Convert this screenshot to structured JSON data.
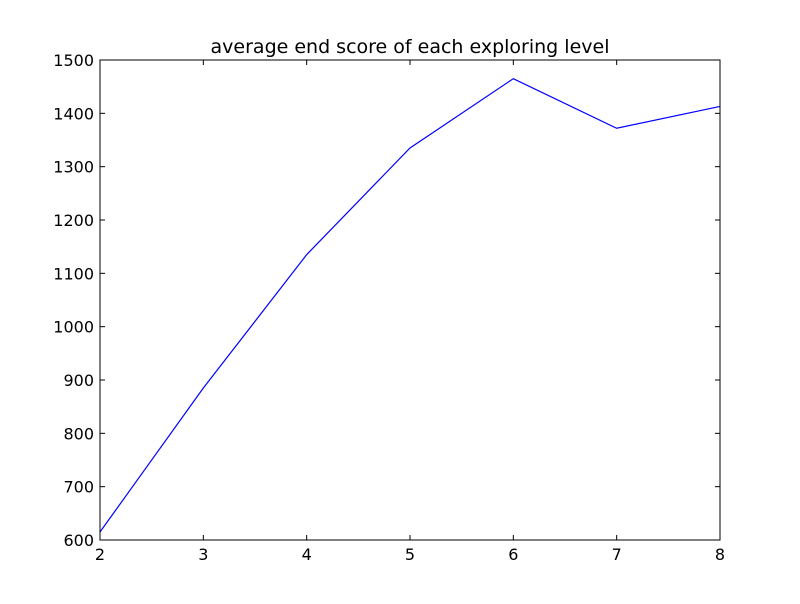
{
  "chart_data": {
    "type": "line",
    "title": "average end score of each exploring level",
    "xlabel": "",
    "ylabel": "",
    "x": [
      2,
      3,
      4,
      5,
      6,
      7,
      8
    ],
    "series": [
      {
        "values": [
          615,
          885,
          1135,
          1335,
          1465,
          1372,
          1413
        ],
        "color": "#0000ff"
      }
    ],
    "xlim": [
      2,
      8
    ],
    "ylim": [
      600,
      1500
    ],
    "xticks": [
      2,
      3,
      4,
      5,
      6,
      7,
      8
    ],
    "yticks": [
      600,
      700,
      800,
      900,
      1000,
      1100,
      1200,
      1300,
      1400,
      1500
    ],
    "grid": false,
    "legend": "none"
  }
}
